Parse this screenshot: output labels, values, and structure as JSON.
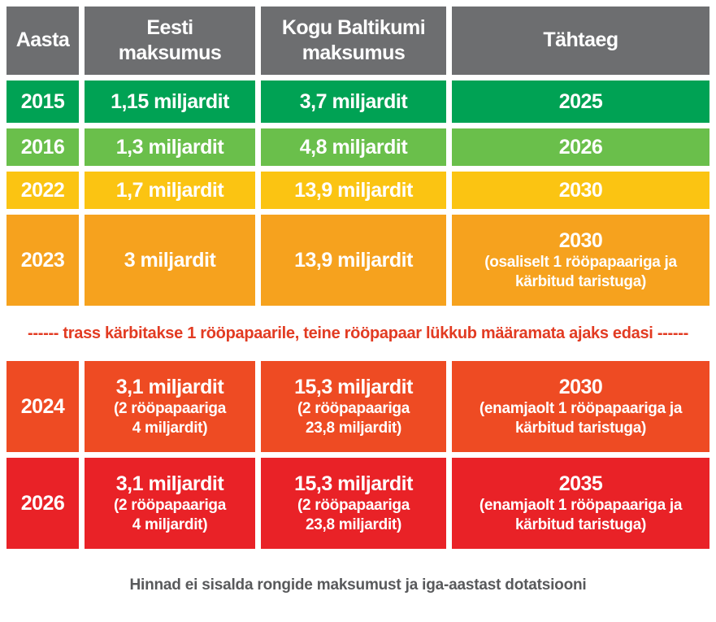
{
  "chart_data": {
    "type": "table",
    "columns": [
      "Aasta",
      "Eesti\nmaksumus",
      "Kogu Baltikumi\nmaksumus",
      "Tähtaeg"
    ],
    "header_bg": "#6d6e70",
    "rows": [
      {
        "year": "2015",
        "color": "#00a254",
        "eesti_main": "1,15 miljardit",
        "eesti_sub": "",
        "baltikum_main": "3,7 miljardit",
        "baltikum_sub": "",
        "tahtaeg_main": "2025",
        "tahtaeg_sub": ""
      },
      {
        "year": "2016",
        "color": "#6abf4b",
        "eesti_main": "1,3 miljardit",
        "eesti_sub": "",
        "baltikum_main": "4,8 miljardit",
        "baltikum_sub": "",
        "tahtaeg_main": "2026",
        "tahtaeg_sub": ""
      },
      {
        "year": "2022",
        "color": "#fbc412",
        "eesti_main": "1,7 miljardit",
        "eesti_sub": "",
        "baltikum_main": "13,9 miljardit",
        "baltikum_sub": "",
        "tahtaeg_main": "2030",
        "tahtaeg_sub": ""
      },
      {
        "year": "2023",
        "color": "#f6a21e",
        "eesti_main": "3 miljardit",
        "eesti_sub": "",
        "baltikum_main": "13,9 miljardit",
        "baltikum_sub": "",
        "tahtaeg_main": "2030",
        "tahtaeg_sub": "(osaliselt 1 rööpapaariga ja\nkärbitud taristuga)"
      },
      {
        "year": "2024",
        "color": "#ee4b23",
        "eesti_main": "3,1 miljardit",
        "eesti_sub": "(2 rööpapaariga\n4 miljardit)",
        "baltikum_main": "15,3 miljardit",
        "baltikum_sub": "(2 rööpapaariga\n23,8 miljardit)",
        "tahtaeg_main": "2030",
        "tahtaeg_sub": "(enamjaolt 1 rööpapaariga ja\nkärbitud taristuga)"
      },
      {
        "year": "2026",
        "color": "#e92227",
        "eesti_main": "3,1 miljardit",
        "eesti_sub": "(2 rööpapaariga\n4 miljardit)",
        "baltikum_main": "15,3 miljardit",
        "baltikum_sub": "(2 rööpapaariga\n23,8 miljardit)",
        "tahtaeg_main": "2035",
        "tahtaeg_sub": "(enamjaolt 1 rööpapaariga ja\nkärbitud taristuga)"
      }
    ],
    "divider_note": "------ trass kärbitakse 1 rööpapaarile, teine rööpapaar lükkub määramata ajaks edasi ------",
    "divider_color": "#e23b22",
    "footnote": "Hinnad ei sisalda rongide maksumust ja iga-aastast dotatsiooni",
    "footnote_color": "#58595b"
  }
}
